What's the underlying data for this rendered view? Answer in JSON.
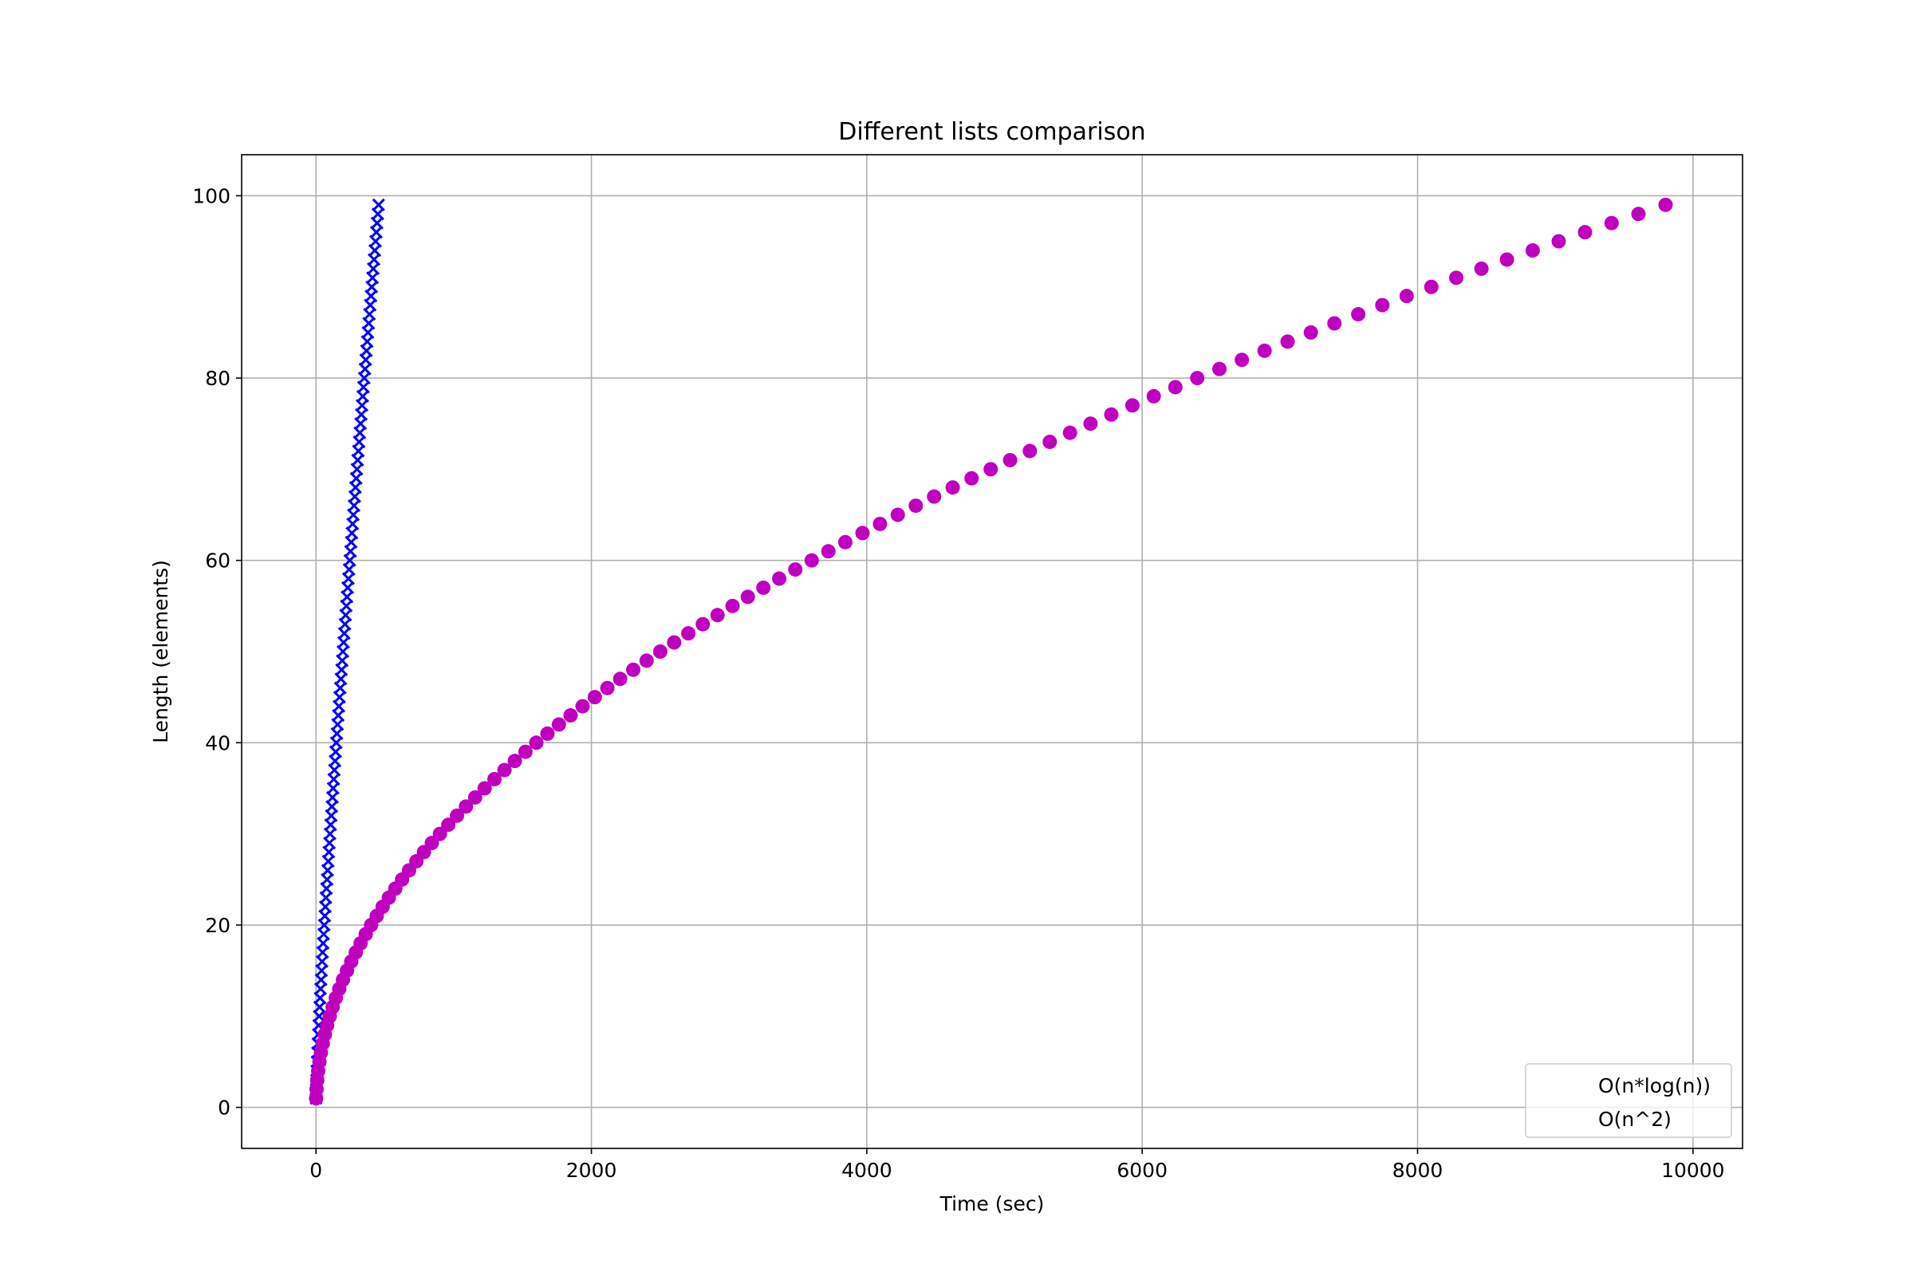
{
  "chart_data": {
    "type": "scatter",
    "title": "Different lists comparison",
    "xlabel": "Time (sec)",
    "ylabel": "Length (elements)",
    "xlim": [
      -540,
      10360
    ],
    "ylim": [
      -4.5,
      104.5
    ],
    "xticks": [
      0,
      2000,
      4000,
      6000,
      8000,
      10000
    ],
    "yticks": [
      0,
      20,
      40,
      60,
      80,
      100
    ],
    "grid": true,
    "legend": {
      "placement": "lower-right",
      "entries": [
        "O(n*log(n))",
        "O(n^2)"
      ]
    },
    "series": [
      {
        "name": "O(n*log(n))",
        "marker": "x",
        "color": "#0000ff",
        "n_from": 1,
        "n_to": 99,
        "x_formula": "n*log(n)",
        "y_formula": "n"
      },
      {
        "name": "O(n^2)",
        "marker": "o",
        "color": "#bf00bf",
        "n_from": 1,
        "n_to": 99,
        "x_formula": "n^2",
        "y_formula": "n"
      }
    ]
  }
}
